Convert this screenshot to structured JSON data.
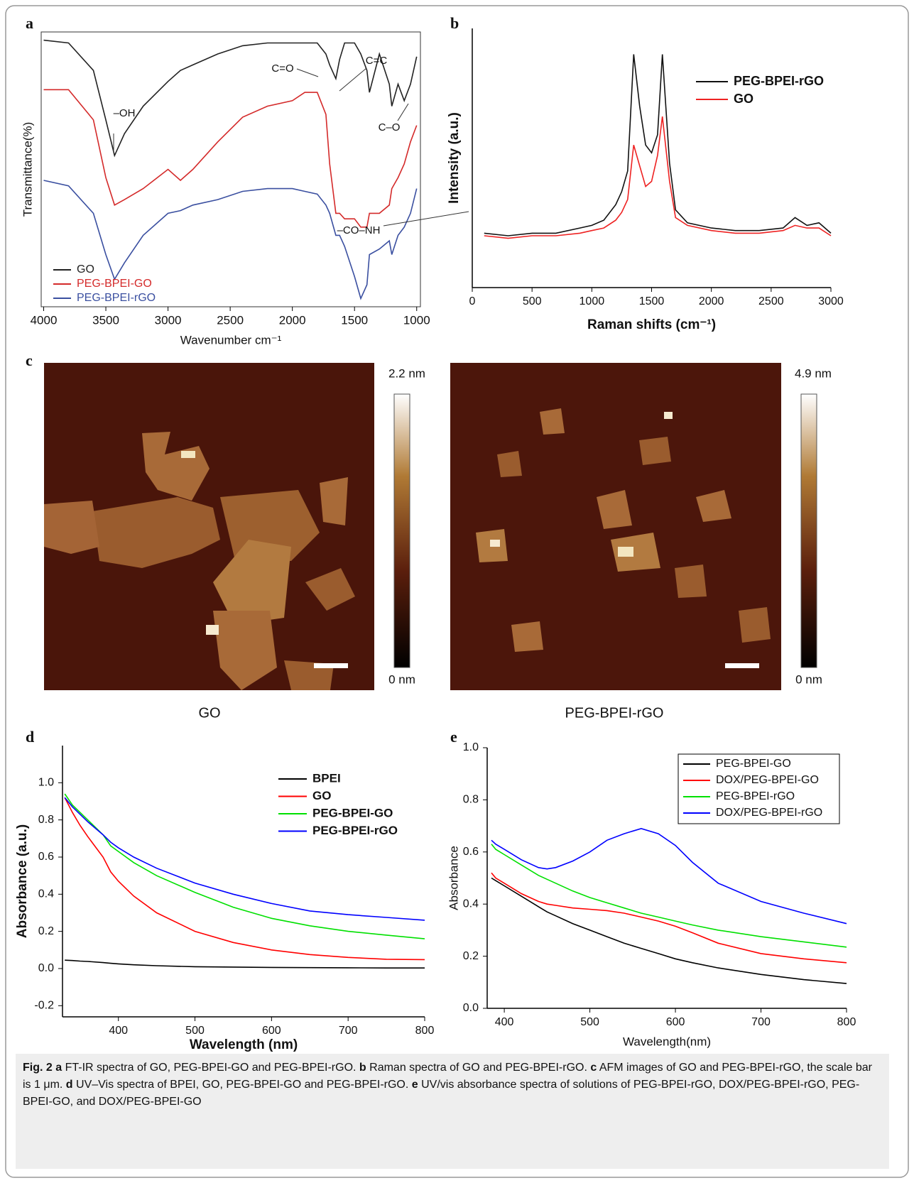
{
  "chart_data": [
    {
      "type": "line",
      "panel": "a",
      "xlabel": "Wavenumber cm⁻¹",
      "ylabel": "Transmittance(%)",
      "frame": true,
      "xlim": [
        4020,
        970
      ],
      "ylim": [
        0,
        100
      ],
      "xticks": [
        4000,
        3500,
        3000,
        2500,
        2000,
        1500,
        1000
      ],
      "x": [
        4000,
        3800,
        3600,
        3500,
        3430,
        3350,
        3200,
        3000,
        2900,
        2800,
        2600,
        2400,
        2200,
        2000,
        1900,
        1800,
        1730,
        1700,
        1650,
        1620,
        1580,
        1500,
        1450,
        1400,
        1380,
        1300,
        1220,
        1200,
        1150,
        1100,
        1050,
        1000
      ],
      "series": [
        {
          "name": "GO",
          "color": "#222222",
          "values": [
            97,
            96,
            86,
            68,
            55,
            63,
            73,
            82,
            86,
            88,
            92,
            95,
            96,
            96,
            96,
            96,
            92,
            88,
            83,
            90,
            96,
            96,
            92,
            86,
            78,
            92,
            81,
            73,
            81,
            75,
            81,
            91
          ]
        },
        {
          "name": "PEG-BPEI-GO",
          "color": "#d42a2a",
          "values": [
            79,
            79,
            68,
            47,
            37,
            39,
            43,
            50,
            46,
            50,
            60,
            69,
            73,
            75,
            78,
            78,
            70,
            52,
            34,
            34,
            32,
            32,
            29,
            29,
            34,
            34,
            37,
            43,
            47,
            52,
            60,
            66
          ]
        },
        {
          "name": "PEG-BPEI-rGO",
          "color": "#3a4fa0",
          "values": [
            46,
            44,
            34,
            19,
            10,
            16,
            26,
            34,
            35,
            37,
            39,
            42,
            43,
            43,
            42,
            41,
            37,
            34,
            26,
            26,
            22,
            11,
            3,
            8,
            19,
            21,
            24,
            19,
            26,
            29,
            34,
            43
          ]
        }
      ],
      "annotations": [
        "–OH",
        "C=O",
        "C=C",
        "C–O",
        "–CO–NH"
      ]
    },
    {
      "type": "line",
      "panel": "b",
      "xlabel": "Raman shifts (cm⁻¹)",
      "ylabel": "Intensity (a.u.)",
      "frame": false,
      "xlim": [
        0,
        3000
      ],
      "ylim": [
        0,
        100
      ],
      "xticks": [
        0,
        500,
        1000,
        1500,
        2000,
        2500,
        3000
      ],
      "x": [
        100,
        300,
        500,
        700,
        900,
        1000,
        1100,
        1200,
        1250,
        1300,
        1350,
        1400,
        1450,
        1500,
        1550,
        1590,
        1650,
        1700,
        1800,
        2000,
        2200,
        2400,
        2600,
        2700,
        2800,
        2900,
        3000
      ],
      "series": [
        {
          "name": "PEG-BPEI-rGO",
          "color": "#111111",
          "values": [
            21,
            20,
            21,
            21,
            23,
            24,
            26,
            32,
            37,
            45,
            90,
            70,
            55,
            52,
            59,
            90,
            48,
            30,
            25,
            23,
            22,
            22,
            23,
            27,
            24,
            25,
            21
          ]
        },
        {
          "name": "GO",
          "color": "#ee2222",
          "values": [
            20,
            19,
            20,
            20,
            21,
            22,
            23,
            26,
            29,
            34,
            55,
            47,
            39,
            41,
            51,
            66,
            41,
            27,
            24,
            22,
            21,
            21,
            22,
            24,
            23,
            23,
            20
          ]
        }
      ]
    },
    {
      "type": "line",
      "panel": "d",
      "xlabel": "Wavelength (nm)",
      "ylabel": "Absorbance (a.u.)",
      "frame": false,
      "xlim": [
        327,
        800
      ],
      "ylim": [
        -0.26,
        1.2
      ],
      "xticks": [
        400,
        500,
        600,
        700,
        800
      ],
      "yticks": [
        -0.2,
        {
          "value": 0,
          "label": "0.0"
        },
        0.2,
        0.4,
        0.6,
        0.8,
        {
          "value": 1,
          "label": "1.0"
        }
      ],
      "x": [
        330,
        340,
        350,
        360,
        380,
        390,
        400,
        420,
        450,
        500,
        550,
        600,
        650,
        700,
        750,
        800
      ],
      "series": [
        {
          "name": "BPEI",
          "color": "#000000",
          "values": [
            0.045,
            0.043,
            0.04,
            0.038,
            0.032,
            0.028,
            0.025,
            0.02,
            0.015,
            0.01,
            0.008,
            0.006,
            0.005,
            0.004,
            0.003,
            0.003
          ]
        },
        {
          "name": "GO",
          "color": "#ff0000",
          "values": [
            0.92,
            0.84,
            0.77,
            0.71,
            0.6,
            0.52,
            0.47,
            0.39,
            0.3,
            0.2,
            0.14,
            0.1,
            0.075,
            0.06,
            0.05,
            0.048
          ]
        },
        {
          "name": "PEG-BPEI-GO",
          "color": "#00e000",
          "values": [
            0.94,
            0.88,
            0.84,
            0.8,
            0.72,
            0.66,
            0.63,
            0.57,
            0.5,
            0.41,
            0.33,
            0.27,
            0.23,
            0.2,
            0.18,
            0.16
          ]
        },
        {
          "name": "PEG-BPEI-rGO",
          "color": "#0000ff",
          "values": [
            0.92,
            0.87,
            0.83,
            0.79,
            0.72,
            0.68,
            0.65,
            0.6,
            0.54,
            0.46,
            0.4,
            0.35,
            0.31,
            0.29,
            0.275,
            0.26
          ]
        }
      ]
    },
    {
      "type": "line",
      "panel": "e",
      "xlabel": "Wavelength(nm)",
      "ylabel": "Absorbance",
      "frame": false,
      "xlim": [
        380,
        800
      ],
      "ylim": [
        0,
        1
      ],
      "xticks": [
        400,
        500,
        600,
        700,
        800
      ],
      "yticks": [
        {
          "value": 0,
          "label": "0.0"
        },
        0.2,
        0.4,
        0.6,
        0.8,
        {
          "value": 1,
          "label": "1.0"
        }
      ],
      "x": [
        385,
        390,
        400,
        420,
        440,
        450,
        460,
        480,
        500,
        520,
        540,
        560,
        580,
        600,
        620,
        650,
        700,
        750,
        800
      ],
      "series": [
        {
          "name": "PEG-BPEI-GO",
          "color": "#000000",
          "values": [
            0.5,
            0.49,
            0.47,
            0.43,
            0.39,
            0.37,
            0.355,
            0.325,
            0.3,
            0.275,
            0.25,
            0.23,
            0.21,
            0.19,
            0.175,
            0.155,
            0.13,
            0.11,
            0.095
          ]
        },
        {
          "name": "DOX/PEG-BPEI-GO",
          "color": "#ff0000",
          "values": [
            0.52,
            0.5,
            0.48,
            0.44,
            0.41,
            0.4,
            0.395,
            0.385,
            0.38,
            0.375,
            0.365,
            0.35,
            0.335,
            0.315,
            0.29,
            0.25,
            0.21,
            0.19,
            0.175
          ]
        },
        {
          "name": "PEG-BPEI-rGO",
          "color": "#00e000",
          "values": [
            0.63,
            0.61,
            0.59,
            0.55,
            0.51,
            0.495,
            0.48,
            0.45,
            0.425,
            0.405,
            0.385,
            0.365,
            0.35,
            0.335,
            0.32,
            0.3,
            0.275,
            0.255,
            0.235
          ]
        },
        {
          "name": "DOX/PEG-BPEI-rGO",
          "color": "#0000ff",
          "values": [
            0.645,
            0.63,
            0.61,
            0.57,
            0.54,
            0.535,
            0.54,
            0.565,
            0.6,
            0.645,
            0.67,
            0.69,
            0.67,
            0.625,
            0.56,
            0.48,
            0.41,
            0.365,
            0.325
          ]
        }
      ]
    }
  ],
  "afm": {
    "panel": "c",
    "images": [
      {
        "caption": "GO",
        "max": "2.2 nm",
        "min": "0 nm"
      },
      {
        "caption": "PEG-BPEI-rGO",
        "max": "4.9 nm",
        "min": "0 nm"
      }
    ]
  },
  "caption": {
    "label": "Fig. 2",
    "parts": [
      {
        "key": "a",
        "text": " FT-IR spectra of GO, PEG-BPEI-GO and PEG-BPEI-rGO. "
      },
      {
        "key": "b",
        "text": " Raman spectra of GO and PEG-BPEI-rGO. "
      },
      {
        "key": "c",
        "text": " AFM images of GO and PEG-BPEI-rGO, the scale bar is 1 μm. "
      },
      {
        "key": "d",
        "text": " UV–Vis spectra of BPEI, GO, PEG-BPEI-GO and PEG-BPEI-rGO. "
      },
      {
        "key": "e",
        "text": " UV/vis absorbance spectra of solutions of PEG-BPEI-rGO, DOX/PEG-BPEI-rGO, PEG-BPEI-GO, and DOX/PEG-BPEI-GO"
      }
    ]
  }
}
